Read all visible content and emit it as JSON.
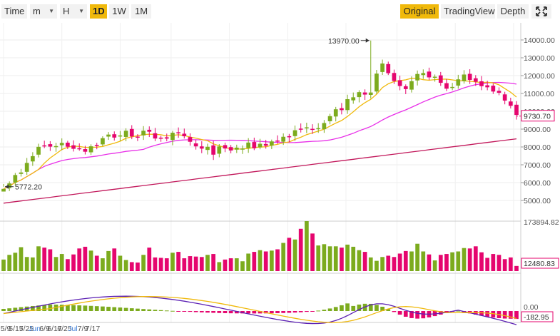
{
  "toolbar": {
    "time_label": "Time",
    "minute_select": "m",
    "hour_select": "H",
    "intervals": [
      "1D",
      "1W",
      "1M"
    ],
    "active_interval": "1D",
    "views": [
      "Original",
      "TradingView",
      "Depth"
    ],
    "active_view": "Original",
    "fullscreen_icon": "expand-icon"
  },
  "colors": {
    "up": "#7cab1e",
    "down": "#e5066e",
    "accent": "#f0b90b",
    "ma7": "#f0b90b",
    "ma25": "#e830e8",
    "ma99": "#c2185b",
    "macd": "#5b1fb3",
    "signal": "#f0b90b"
  },
  "chart_data": [
    {
      "type": "candlestick",
      "title": "",
      "x_ticks": [
        "5/9",
        "5/17",
        "5/25",
        "Jun",
        "6/9",
        "6/17",
        "6/25",
        "Jul",
        "7/9",
        "7/17"
      ],
      "y_ticks": [
        "14000.00",
        "13000.00",
        "12000.00",
        "11000.00",
        "10000.00",
        "9000.00",
        "8000.00",
        "7000.00",
        "6000.00",
        "5000.00"
      ],
      "ylim": [
        4500,
        14700
      ],
      "annotations": {
        "high_label": "13970.00",
        "low_label": "5772.20",
        "last_price": "9730.70"
      },
      "last_price": 9730.7,
      "high": 13970.0,
      "low": 5772.2,
      "overlays": [
        "MA7",
        "MA25",
        "MA99"
      ]
    },
    {
      "type": "bar",
      "title": "",
      "y_max_label": "173894.82",
      "last_value_label": "12480.83",
      "values": [
        27,
        38,
        43,
        56,
        33,
        32,
        58,
        55,
        51,
        33,
        40,
        28,
        39,
        53,
        57,
        48,
        36,
        30,
        47,
        53,
        36,
        26,
        21,
        20,
        38,
        55,
        32,
        31,
        30,
        43,
        45,
        30,
        35,
        34,
        33,
        38,
        40,
        21,
        27,
        30,
        30,
        23,
        41,
        45,
        49,
        46,
        48,
        51,
        66,
        78,
        74,
        99,
        117,
        88,
        60,
        63,
        58,
        58,
        55,
        62,
        57,
        49,
        45,
        32,
        24,
        33,
        36,
        33,
        41,
        47,
        46,
        64,
        46,
        39,
        25,
        38,
        40,
        44,
        46,
        54,
        53,
        58,
        44,
        31,
        40,
        38,
        28,
        32,
        12
      ]
    },
    {
      "type": "line",
      "title": "",
      "series": [
        "MACD",
        "Signal",
        "Histogram"
      ],
      "zero_label": "0.00",
      "last_value_label": "-182.95"
    }
  ]
}
